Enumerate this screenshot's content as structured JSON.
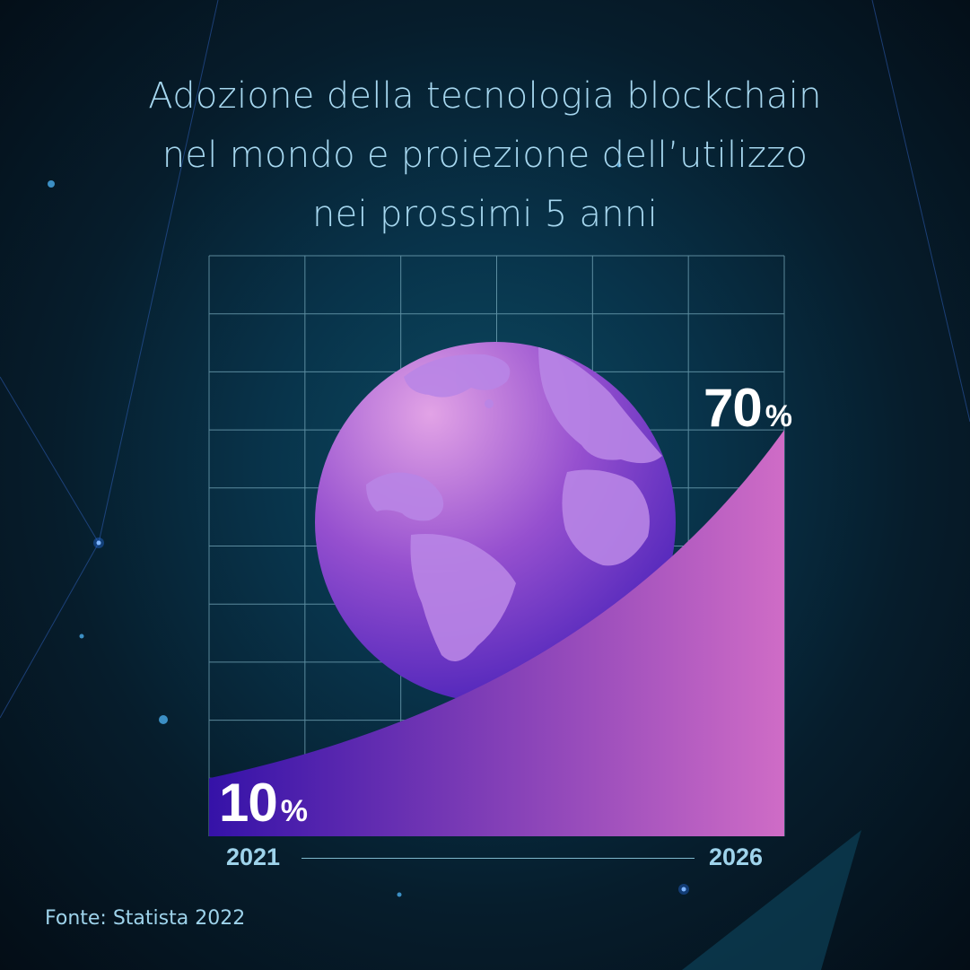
{
  "title_lines": [
    "Adozione della tecnologia blockchain",
    "nel mondo e proiezione dell’utilizzo",
    "nei prossimi 5 anni"
  ],
  "source": "Fonte: Statista 2022",
  "colors": {
    "title": "#a6d7ef",
    "grid": "#7fb2c4",
    "area_start": "#3512a8",
    "area_end": "#cf6cc6",
    "globe_light": "#e2a3e6",
    "globe_dark": "#3a18b4",
    "continents": "#b985e6"
  },
  "illustration": {
    "globe_icon": "globe-icon"
  },
  "chart_data": {
    "type": "area",
    "title": "Adozione della tecnologia blockchain nel mondo e proiezione dell’utilizzo nei prossimi 5 anni",
    "x": [
      "2021",
      "2026"
    ],
    "values": [
      10,
      70
    ],
    "value_labels": [
      {
        "number": "10",
        "unit": "%"
      },
      {
        "number": "70",
        "unit": "%"
      }
    ],
    "unit": "%",
    "ylim": [
      0,
      100
    ],
    "grid": true,
    "xlabel": "",
    "ylabel": ""
  }
}
